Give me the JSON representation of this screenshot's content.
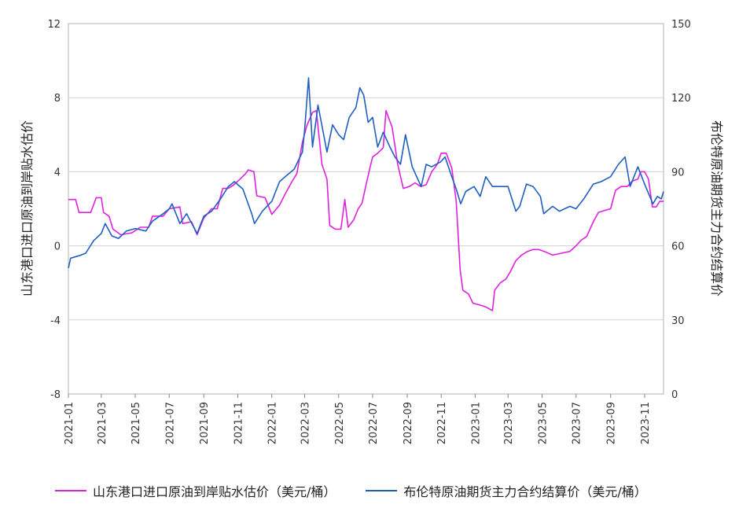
{
  "chart_data": {
    "type": "line",
    "xlabel": "",
    "ylabel_left": "山东港口进口原油到岸贴水估价",
    "ylabel_right": "布伦特原油期货主力合约结算价",
    "ylim_left": [
      -8,
      12
    ],
    "ylim_right": [
      0,
      150
    ],
    "yticks_left": [
      "12",
      "8",
      "4",
      "0",
      "-4",
      "-8"
    ],
    "yticks_right": [
      "150",
      "120",
      "90",
      "60",
      "30",
      "0"
    ],
    "grid": true,
    "legend_position": "bottom",
    "x_ticks": [
      "2021-01",
      "2021-03",
      "2021-05",
      "2021-07",
      "2021-09",
      "2021-11",
      "2022-01",
      "2022-03",
      "2022-05",
      "2022-07",
      "2022-09",
      "2022-11",
      "2023-01",
      "2023-03",
      "2023-05",
      "2023-07",
      "2023-09",
      "2023-11"
    ],
    "series": [
      {
        "name": "山东港口进口原油到岸贴水估价（美元/桶）",
        "axis": "left",
        "color": "#e020e0",
        "points": [
          [
            "2021-01-01",
            2.5
          ],
          [
            "2021-01-14",
            2.5
          ],
          [
            "2021-01-20",
            1.8
          ],
          [
            "2021-02-10",
            1.8
          ],
          [
            "2021-02-20",
            2.6
          ],
          [
            "2021-03-01",
            2.6
          ],
          [
            "2021-03-05",
            1.8
          ],
          [
            "2021-03-15",
            1.6
          ],
          [
            "2021-03-22",
            0.9
          ],
          [
            "2021-04-05",
            0.6
          ],
          [
            "2021-04-25",
            0.7
          ],
          [
            "2021-05-10",
            1.0
          ],
          [
            "2021-05-25",
            1.0
          ],
          [
            "2021-06-01",
            1.6
          ],
          [
            "2021-06-20",
            1.6
          ],
          [
            "2021-07-01",
            2.0
          ],
          [
            "2021-07-20",
            2.1
          ],
          [
            "2021-07-25",
            1.2
          ],
          [
            "2021-08-10",
            1.3
          ],
          [
            "2021-08-20",
            0.6
          ],
          [
            "2021-09-01",
            1.5
          ],
          [
            "2021-09-15",
            2.0
          ],
          [
            "2021-09-25",
            2.0
          ],
          [
            "2021-10-05",
            3.1
          ],
          [
            "2021-10-15",
            3.1
          ],
          [
            "2021-10-25",
            3.3
          ],
          [
            "2021-11-05",
            3.6
          ],
          [
            "2021-11-15",
            3.9
          ],
          [
            "2021-11-20",
            4.1
          ],
          [
            "2021-11-30",
            4.0
          ],
          [
            "2021-12-05",
            2.7
          ],
          [
            "2021-12-20",
            2.6
          ],
          [
            "2022-01-01",
            1.7
          ],
          [
            "2022-01-15",
            2.2
          ],
          [
            "2022-01-25",
            2.8
          ],
          [
            "2022-02-05",
            3.4
          ],
          [
            "2022-02-15",
            3.9
          ],
          [
            "2022-02-25",
            5.6
          ],
          [
            "2022-03-05",
            6.5
          ],
          [
            "2022-03-15",
            7.2
          ],
          [
            "2022-03-22",
            7.3
          ],
          [
            "2022-04-01",
            4.4
          ],
          [
            "2022-04-10",
            3.6
          ],
          [
            "2022-04-15",
            1.1
          ],
          [
            "2022-04-25",
            0.9
          ],
          [
            "2022-05-05",
            0.9
          ],
          [
            "2022-05-12",
            2.5
          ],
          [
            "2022-05-18",
            1.0
          ],
          [
            "2022-05-28",
            1.4
          ],
          [
            "2022-06-05",
            2.0
          ],
          [
            "2022-06-12",
            2.3
          ],
          [
            "2022-06-20",
            3.4
          ],
          [
            "2022-06-26",
            4.2
          ],
          [
            "2022-07-01",
            4.8
          ],
          [
            "2022-07-10",
            5.0
          ],
          [
            "2022-07-20",
            5.3
          ],
          [
            "2022-07-25",
            7.3
          ],
          [
            "2022-08-05",
            6.4
          ],
          [
            "2022-08-15",
            4.4
          ],
          [
            "2022-08-25",
            3.1
          ],
          [
            "2022-09-05",
            3.2
          ],
          [
            "2022-09-15",
            3.4
          ],
          [
            "2022-09-25",
            3.2
          ],
          [
            "2022-10-05",
            3.3
          ],
          [
            "2022-10-15",
            4.0
          ],
          [
            "2022-10-25",
            4.4
          ],
          [
            "2022-11-01",
            5.0
          ],
          [
            "2022-11-10",
            5.0
          ],
          [
            "2022-11-20",
            4.2
          ],
          [
            "2022-11-28",
            2.4
          ],
          [
            "2022-12-05",
            -1.3
          ],
          [
            "2022-12-10",
            -2.4
          ],
          [
            "2022-12-20",
            -2.6
          ],
          [
            "2022-12-28",
            -3.1
          ],
          [
            "2023-01-10",
            -3.2
          ],
          [
            "2023-01-20",
            -3.3
          ],
          [
            "2023-02-01",
            -3.5
          ],
          [
            "2023-02-05",
            -2.4
          ],
          [
            "2023-02-15",
            -2.0
          ],
          [
            "2023-02-25",
            -1.8
          ],
          [
            "2023-03-05",
            -1.4
          ],
          [
            "2023-03-15",
            -0.8
          ],
          [
            "2023-03-25",
            -0.5
          ],
          [
            "2023-04-05",
            -0.3
          ],
          [
            "2023-04-15",
            -0.2
          ],
          [
            "2023-04-25",
            -0.2
          ],
          [
            "2023-05-05",
            -0.3
          ],
          [
            "2023-05-20",
            -0.5
          ],
          [
            "2023-06-05",
            -0.4
          ],
          [
            "2023-06-20",
            -0.3
          ],
          [
            "2023-07-01",
            0.0
          ],
          [
            "2023-07-10",
            0.3
          ],
          [
            "2023-07-20",
            0.5
          ],
          [
            "2023-08-01",
            1.3
          ],
          [
            "2023-08-10",
            1.8
          ],
          [
            "2023-08-20",
            1.9
          ],
          [
            "2023-09-01",
            2.0
          ],
          [
            "2023-09-10",
            3.0
          ],
          [
            "2023-09-20",
            3.2
          ],
          [
            "2023-10-01",
            3.2
          ],
          [
            "2023-10-10",
            3.5
          ],
          [
            "2023-10-20",
            3.6
          ],
          [
            "2023-10-25",
            4.0
          ],
          [
            "2023-11-01",
            4.0
          ],
          [
            "2023-11-08",
            3.6
          ],
          [
            "2023-11-15",
            2.1
          ],
          [
            "2023-11-22",
            2.1
          ],
          [
            "2023-11-28",
            2.4
          ],
          [
            "2023-12-05",
            2.4
          ]
        ]
      },
      {
        "name": "布伦特原油期货主力合约结算价（美元/桶）",
        "axis": "right",
        "color": "#1f5fbf",
        "points": [
          [
            "2021-01-01",
            51
          ],
          [
            "2021-01-05",
            55
          ],
          [
            "2021-01-20",
            56
          ],
          [
            "2021-02-01",
            57
          ],
          [
            "2021-02-15",
            62
          ],
          [
            "2021-03-01",
            65
          ],
          [
            "2021-03-08",
            69
          ],
          [
            "2021-03-20",
            64
          ],
          [
            "2021-04-01",
            63
          ],
          [
            "2021-04-15",
            66
          ],
          [
            "2021-05-01",
            67
          ],
          [
            "2021-05-20",
            66
          ],
          [
            "2021-06-01",
            70
          ],
          [
            "2021-06-20",
            73
          ],
          [
            "2021-07-01",
            75
          ],
          [
            "2021-07-06",
            77
          ],
          [
            "2021-07-20",
            69
          ],
          [
            "2021-08-01",
            73
          ],
          [
            "2021-08-20",
            65
          ],
          [
            "2021-09-01",
            72
          ],
          [
            "2021-09-15",
            74
          ],
          [
            "2021-10-01",
            79
          ],
          [
            "2021-10-15",
            84
          ],
          [
            "2021-10-26",
            86
          ],
          [
            "2021-11-10",
            83
          ],
          [
            "2021-11-26",
            73
          ],
          [
            "2021-12-01",
            69
          ],
          [
            "2021-12-15",
            74
          ],
          [
            "2022-01-01",
            78
          ],
          [
            "2022-01-15",
            86
          ],
          [
            "2022-01-25",
            88
          ],
          [
            "2022-02-10",
            91
          ],
          [
            "2022-02-25",
            98
          ],
          [
            "2022-03-01",
            107
          ],
          [
            "2022-03-08",
            128
          ],
          [
            "2022-03-15",
            100
          ],
          [
            "2022-03-25",
            117
          ],
          [
            "2022-04-05",
            104
          ],
          [
            "2022-04-10",
            98
          ],
          [
            "2022-04-20",
            109
          ],
          [
            "2022-05-01",
            105
          ],
          [
            "2022-05-10",
            103
          ],
          [
            "2022-05-20",
            112
          ],
          [
            "2022-06-01",
            116
          ],
          [
            "2022-06-08",
            124
          ],
          [
            "2022-06-15",
            121
          ],
          [
            "2022-06-23",
            110
          ],
          [
            "2022-07-01",
            112
          ],
          [
            "2022-07-10",
            100
          ],
          [
            "2022-07-20",
            106
          ],
          [
            "2022-08-01",
            100
          ],
          [
            "2022-08-10",
            96
          ],
          [
            "2022-08-20",
            93
          ],
          [
            "2022-08-29",
            105
          ],
          [
            "2022-09-10",
            92
          ],
          [
            "2022-09-26",
            84
          ],
          [
            "2022-10-05",
            93
          ],
          [
            "2022-10-15",
            92
          ],
          [
            "2022-10-31",
            94
          ],
          [
            "2022-11-08",
            96
          ],
          [
            "2022-11-20",
            88
          ],
          [
            "2022-11-28",
            83
          ],
          [
            "2022-12-06",
            77
          ],
          [
            "2022-12-15",
            82
          ],
          [
            "2022-12-30",
            84
          ],
          [
            "2023-01-10",
            80
          ],
          [
            "2023-01-20",
            88
          ],
          [
            "2023-02-01",
            84
          ],
          [
            "2023-02-15",
            84
          ],
          [
            "2023-03-01",
            84
          ],
          [
            "2023-03-15",
            74
          ],
          [
            "2023-03-22",
            76
          ],
          [
            "2023-04-03",
            85
          ],
          [
            "2023-04-15",
            84
          ],
          [
            "2023-04-28",
            80
          ],
          [
            "2023-05-04",
            73
          ],
          [
            "2023-05-20",
            76
          ],
          [
            "2023-06-01",
            74
          ],
          [
            "2023-06-20",
            76
          ],
          [
            "2023-07-01",
            75
          ],
          [
            "2023-07-15",
            79
          ],
          [
            "2023-08-01",
            85
          ],
          [
            "2023-08-15",
            86
          ],
          [
            "2023-09-01",
            88
          ],
          [
            "2023-09-15",
            93
          ],
          [
            "2023-09-27",
            96
          ],
          [
            "2023-10-06",
            84
          ],
          [
            "2023-10-20",
            92
          ],
          [
            "2023-11-01",
            85
          ],
          [
            "2023-11-16",
            77
          ],
          [
            "2023-11-24",
            80
          ],
          [
            "2023-12-01",
            79
          ],
          [
            "2023-12-05",
            82
          ]
        ]
      }
    ]
  },
  "legend": {
    "item1_label": "山东港口进口原油到岸贴水估价（美元/桶）",
    "item2_label": "布伦特原油期货主力合约结算价（美元/桶）"
  }
}
